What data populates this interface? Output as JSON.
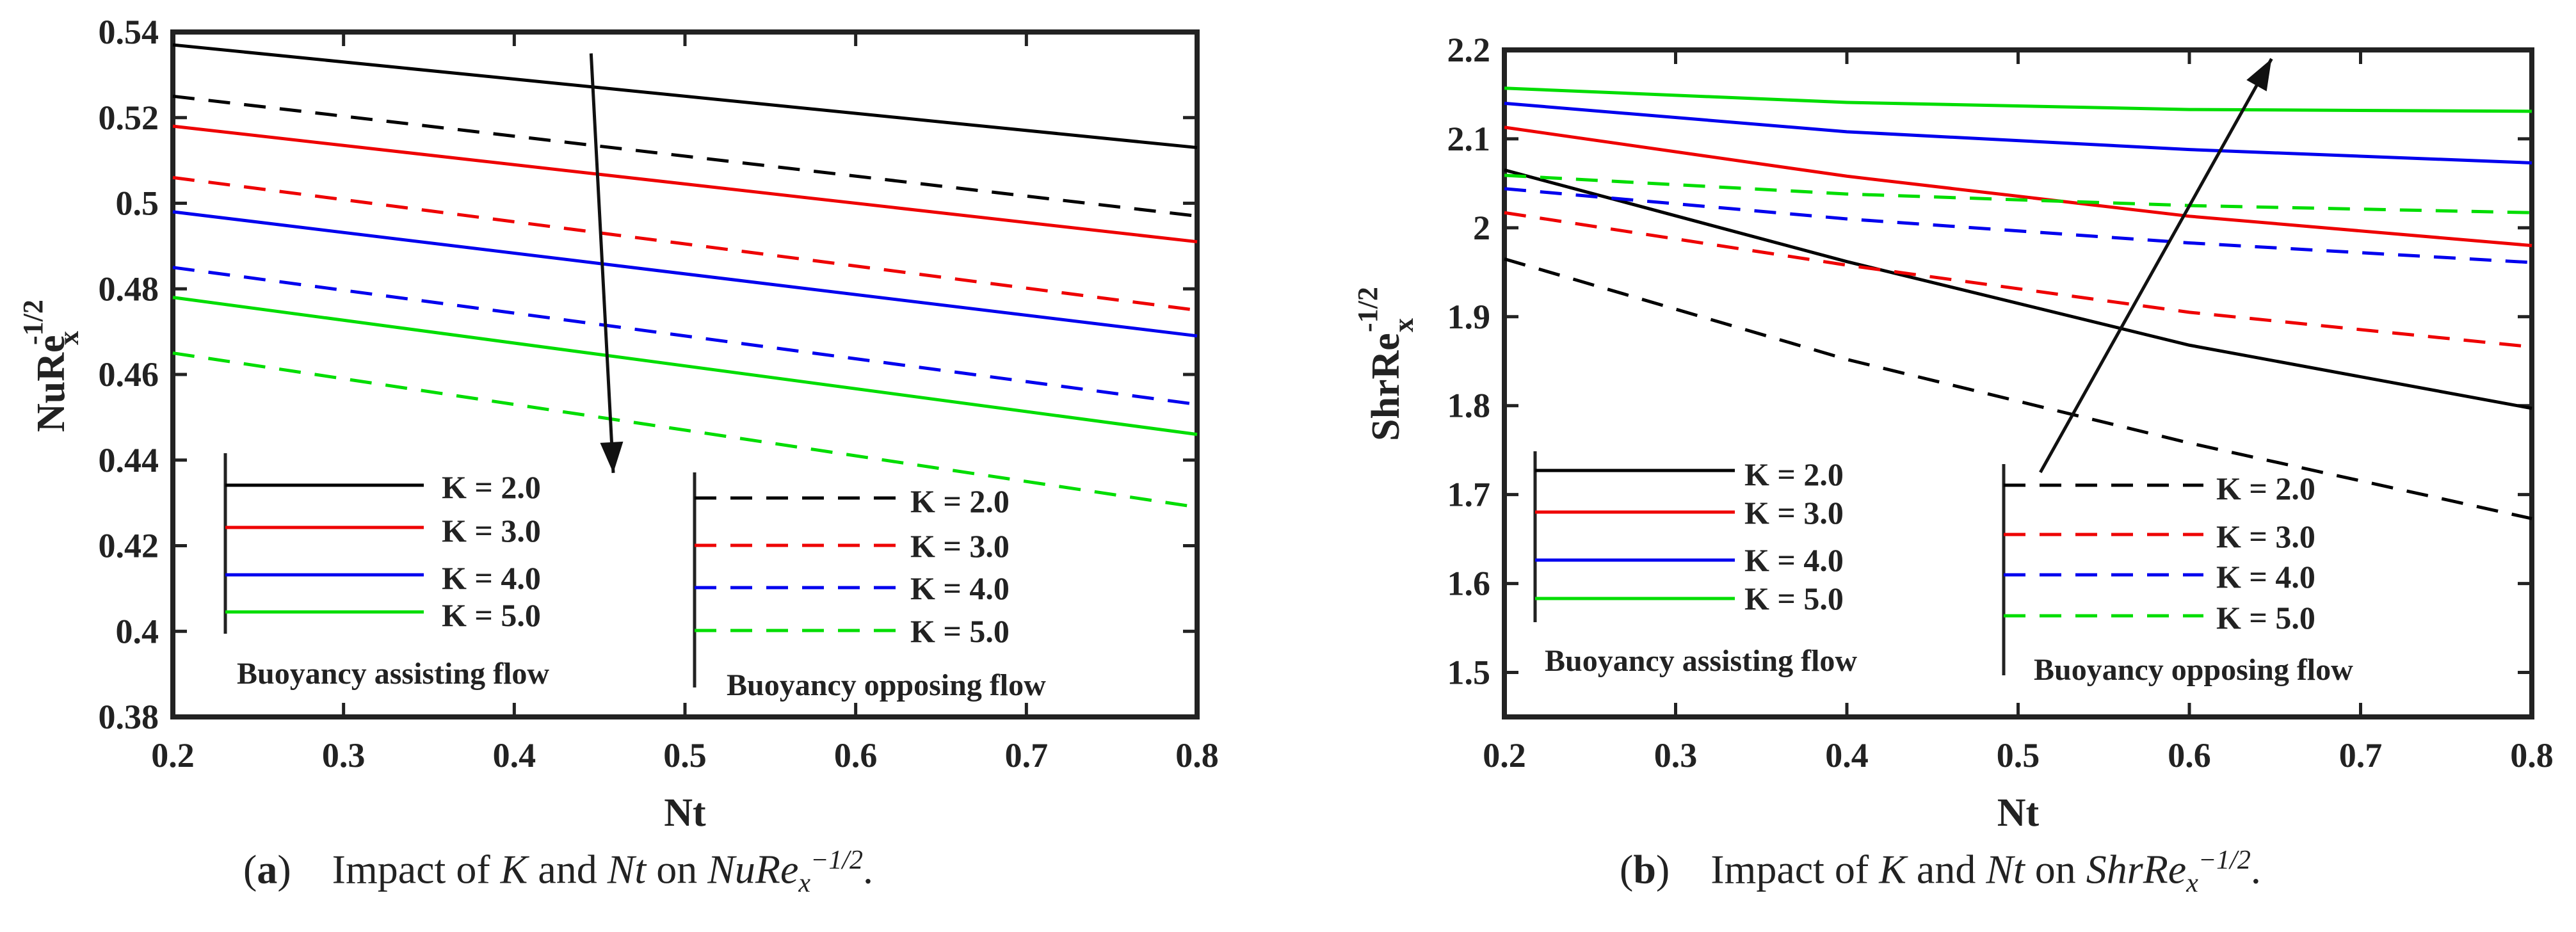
{
  "chart_data": [
    {
      "type": "line",
      "panel_label": "a",
      "xlabel": "Nt",
      "ylabel": "NuRe",
      "ylabel_sub": "x",
      "ylabel_sup": "-1/2",
      "xlim": [
        0.2,
        0.8
      ],
      "ylim": [
        0.38,
        0.54
      ],
      "xticks": [
        0.2,
        0.3,
        0.4,
        0.5,
        0.6,
        0.7,
        0.8
      ],
      "yticks": [
        0.38,
        0.4,
        0.42,
        0.44,
        0.46,
        0.48,
        0.5,
        0.52,
        0.54
      ],
      "ytick_labels": [
        "0.38",
        "0.4",
        "0.42",
        "0.44",
        "0.46",
        "0.48",
        "0.5",
        "0.52",
        "0.54"
      ],
      "xtick_labels": [
        "0.2",
        "0.3",
        "0.4",
        "0.5",
        "0.6",
        "0.7",
        "0.8"
      ],
      "x": [
        0.2,
        0.8
      ],
      "series": [
        {
          "name": "K = 2.0",
          "group": "assisting",
          "color": "#000000",
          "dash": "solid",
          "values": [
            0.537,
            0.513
          ]
        },
        {
          "name": "K = 3.0",
          "group": "assisting",
          "color": "#ee0000",
          "dash": "solid",
          "values": [
            0.518,
            0.491
          ]
        },
        {
          "name": "K = 4.0",
          "group": "assisting",
          "color": "#0000ee",
          "dash": "solid",
          "values": [
            0.498,
            0.469
          ]
        },
        {
          "name": "K = 5.0",
          "group": "assisting",
          "color": "#00dd00",
          "dash": "solid",
          "values": [
            0.478,
            0.446
          ]
        },
        {
          "name": "K = 2.0",
          "group": "opposing",
          "color": "#000000",
          "dash": "dashed",
          "values": [
            0.525,
            0.497
          ]
        },
        {
          "name": "K = 3.0",
          "group": "opposing",
          "color": "#ee0000",
          "dash": "dashed",
          "values": [
            0.506,
            0.475
          ]
        },
        {
          "name": "K = 4.0",
          "group": "opposing",
          "color": "#0000ee",
          "dash": "dashed",
          "values": [
            0.485,
            0.453
          ]
        },
        {
          "name": "K = 5.0",
          "group": "opposing",
          "color": "#00dd00",
          "dash": "dashed",
          "values": [
            0.465,
            0.429
          ]
        }
      ],
      "legend_titles": {
        "assisting": "Buoyancy assisting flow",
        "opposing": "Buoyancy opposing flow"
      },
      "arrow": {
        "from": [
          0.445,
          0.535
        ],
        "to": [
          0.458,
          0.437
        ],
        "meaning": "increasing K"
      },
      "caption": {
        "label": "a",
        "text_pre": "Impact of ",
        "v1": "K",
        "mid": " and ",
        "v2": "Nt",
        "on": " on ",
        "expr": "NuRe",
        "sub": "x",
        "sup": "−1/2",
        "end": "."
      }
    },
    {
      "type": "line",
      "panel_label": "b",
      "xlabel": "Nt",
      "ylabel": "ShrRe",
      "ylabel_sub": "x",
      "ylabel_sup": "-1/2",
      "xlim": [
        0.2,
        0.8
      ],
      "ylim": [
        1.45,
        2.2
      ],
      "xticks": [
        0.2,
        0.3,
        0.4,
        0.5,
        0.6,
        0.7,
        0.8
      ],
      "yticks": [
        1.5,
        1.6,
        1.7,
        1.8,
        1.9,
        2.0,
        2.1,
        2.2
      ],
      "ytick_labels": [
        "1.5",
        "1.6",
        "1.7",
        "1.8",
        "1.9",
        "2",
        "2.1",
        "2.2"
      ],
      "xtick_labels": [
        "0.2",
        "0.3",
        "0.4",
        "0.5",
        "0.6",
        "0.7",
        "0.8"
      ],
      "x": [
        0.2,
        0.4,
        0.6,
        0.8
      ],
      "series": [
        {
          "name": "K = 2.0",
          "group": "assisting",
          "color": "#000000",
          "dash": "solid",
          "values": [
            2.065,
            1.962,
            1.868,
            1.797
          ]
        },
        {
          "name": "K = 3.0",
          "group": "assisting",
          "color": "#ee0000",
          "dash": "solid",
          "values": [
            2.113,
            2.058,
            2.013,
            1.98
          ]
        },
        {
          "name": "K = 4.0",
          "group": "assisting",
          "color": "#0000ee",
          "dash": "solid",
          "values": [
            2.14,
            2.108,
            2.088,
            2.073
          ]
        },
        {
          "name": "K = 5.0",
          "group": "assisting",
          "color": "#00dd00",
          "dash": "solid",
          "values": [
            2.157,
            2.141,
            2.133,
            2.131
          ]
        },
        {
          "name": "K = 2.0",
          "group": "opposing",
          "color": "#000000",
          "dash": "dashed",
          "values": [
            1.965,
            1.852,
            1.758,
            1.673
          ]
        },
        {
          "name": "K = 3.0",
          "group": "opposing",
          "color": "#ee0000",
          "dash": "dashed",
          "values": [
            2.017,
            1.958,
            1.905,
            1.866
          ]
        },
        {
          "name": "K = 4.0",
          "group": "opposing",
          "color": "#0000ee",
          "dash": "dashed",
          "values": [
            2.044,
            2.01,
            1.983,
            1.961
          ]
        },
        {
          "name": "K = 5.0",
          "group": "opposing",
          "color": "#00dd00",
          "dash": "dashed",
          "values": [
            2.059,
            2.038,
            2.025,
            2.017
          ]
        }
      ],
      "legend_titles": {
        "assisting": "Buoyancy assisting flow",
        "opposing": "Buoyancy opposing flow"
      },
      "arrow": {
        "from": [
          0.513,
          1.725
        ],
        "to": [
          0.648,
          2.19
        ],
        "meaning": "increasing K"
      },
      "caption": {
        "label": "b",
        "text_pre": "Impact of ",
        "v1": "K",
        "mid": " and ",
        "v2": "Nt",
        "on": " on ",
        "expr": "ShrRe",
        "sub": "x",
        "sup": "−1/2",
        "end": "."
      }
    }
  ]
}
